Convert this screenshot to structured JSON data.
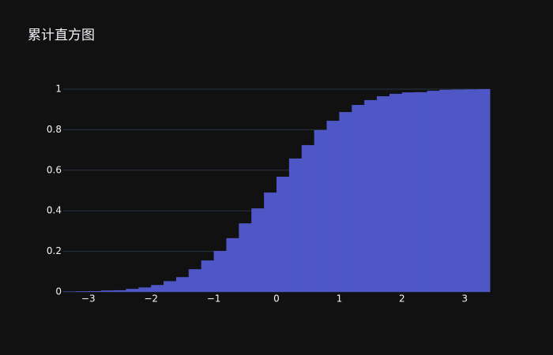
{
  "chart_data": {
    "type": "histogram",
    "title": "累计直方图",
    "color": "#4f57c6",
    "bins": [
      -3.4,
      -3.2,
      -3.0,
      -2.8,
      -2.6,
      -2.4,
      -2.2,
      -2.0,
      -1.8,
      -1.6,
      -1.4,
      -1.2,
      -1.0,
      -0.8,
      -0.6,
      -0.4,
      -0.2,
      0,
      0.2,
      0.4,
      0.6,
      0.8,
      1.0,
      1.2,
      1.4,
      1.6,
      1.8,
      2.0,
      2.2,
      2.4,
      2.6,
      2.8,
      3.0,
      3.2,
      3.4
    ],
    "values": [
      0.002,
      0.003,
      0.004,
      0.007,
      0.008,
      0.015,
      0.022,
      0.034,
      0.053,
      0.073,
      0.112,
      0.155,
      0.202,
      0.265,
      0.338,
      0.412,
      0.49,
      0.568,
      0.658,
      0.724,
      0.798,
      0.844,
      0.887,
      0.922,
      0.946,
      0.965,
      0.977,
      0.984,
      0.985,
      0.992,
      0.997,
      0.998,
      0.999,
      1
    ],
    "xlim": [
      -3.4,
      3.4
    ],
    "xticks": [
      {
        "value": -3,
        "label": "−3"
      },
      {
        "value": -2,
        "label": "−2"
      },
      {
        "value": -1,
        "label": "−1"
      },
      0,
      1,
      2,
      3
    ],
    "ylim": [
      0,
      1
    ],
    "yticks": [
      0,
      0.2,
      0.4,
      0.6,
      0.8,
      1
    ],
    "grid": true
  }
}
